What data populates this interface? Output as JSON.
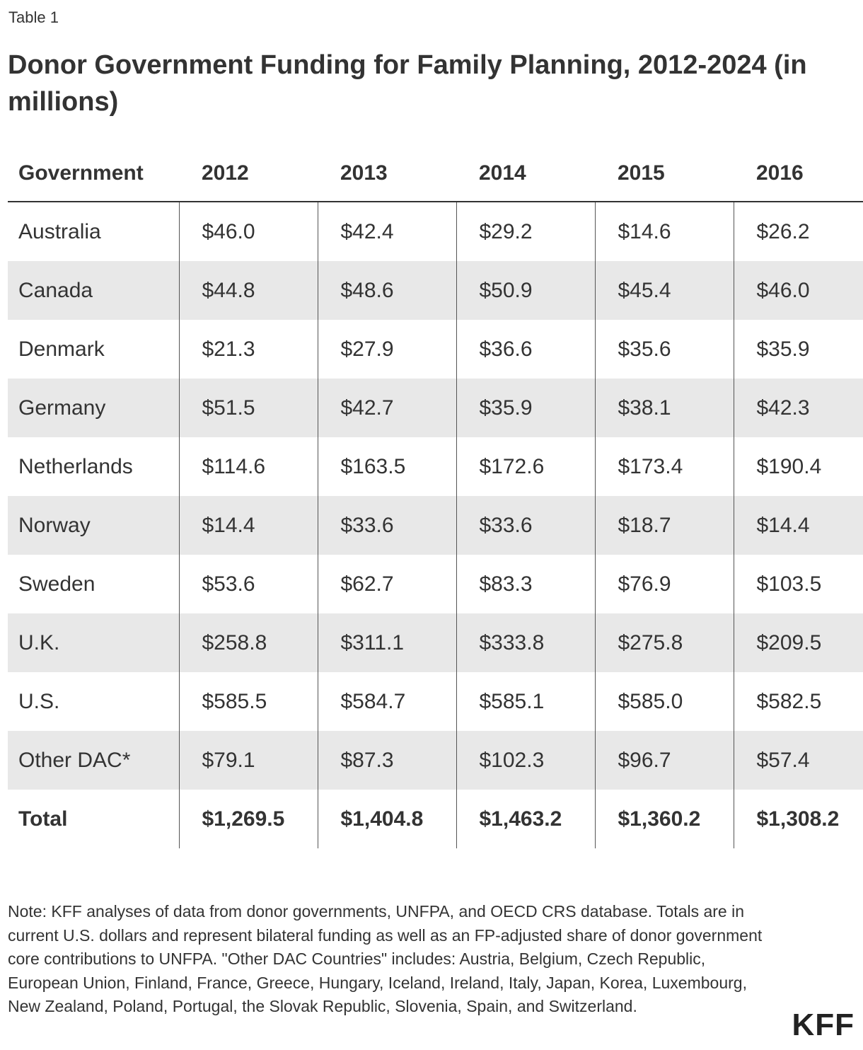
{
  "label": "Table 1",
  "title": "Donor Government Funding for Family Planning, 2012-2024 (in millions)",
  "table": {
    "headers": [
      "Government",
      "2012",
      "2013",
      "2014",
      "2015",
      "2016"
    ],
    "rows": [
      {
        "name": "Australia",
        "values": [
          "$46.0",
          "$42.4",
          "$29.2",
          "$14.6",
          "$26.2"
        ]
      },
      {
        "name": "Canada",
        "values": [
          "$44.8",
          "$48.6",
          "$50.9",
          "$45.4",
          "$46.0"
        ]
      },
      {
        "name": "Denmark",
        "values": [
          "$21.3",
          "$27.9",
          "$36.6",
          "$35.6",
          "$35.9"
        ]
      },
      {
        "name": "Germany",
        "values": [
          "$51.5",
          "$42.7",
          "$35.9",
          "$38.1",
          "$42.3"
        ]
      },
      {
        "name": "Netherlands",
        "values": [
          "$114.6",
          "$163.5",
          "$172.6",
          "$173.4",
          "$190.4"
        ]
      },
      {
        "name": "Norway",
        "values": [
          "$14.4",
          "$33.6",
          "$33.6",
          "$18.7",
          "$14.4"
        ]
      },
      {
        "name": "Sweden",
        "values": [
          "$53.6",
          "$62.7",
          "$83.3",
          "$76.9",
          "$103.5"
        ]
      },
      {
        "name": "U.K.",
        "values": [
          "$258.8",
          "$311.1",
          "$333.8",
          "$275.8",
          "$209.5"
        ]
      },
      {
        "name": "U.S.",
        "values": [
          "$585.5",
          "$584.7",
          "$585.1",
          "$585.0",
          "$582.5"
        ]
      },
      {
        "name": "Other DAC*",
        "values": [
          "$79.1",
          "$87.3",
          "$102.3",
          "$96.7",
          "$57.4"
        ]
      },
      {
        "name": "Total",
        "values": [
          "$1,269.5",
          "$1,404.8",
          "$1,463.2",
          "$1,360.2",
          "$1,308.2"
        ]
      }
    ]
  },
  "note": "Note: KFF analyses of data from donor governments, UNFPA, and OECD CRS database. Totals are in current U.S. dollars and represent bilateral funding as well as an FP-adjusted share of donor government core contributions to UNFPA. \"Other DAC Countries\" includes: Austria, Belgium, Czech Republic, European Union, Finland, France, Greece, Hungary, Iceland, Ireland, Italy, Japan, Korea, Luxembourg, New Zealand, Poland, Portugal, the Slovak Republic, Slovenia, Spain, and Switzerland.",
  "logo": "KFF"
}
